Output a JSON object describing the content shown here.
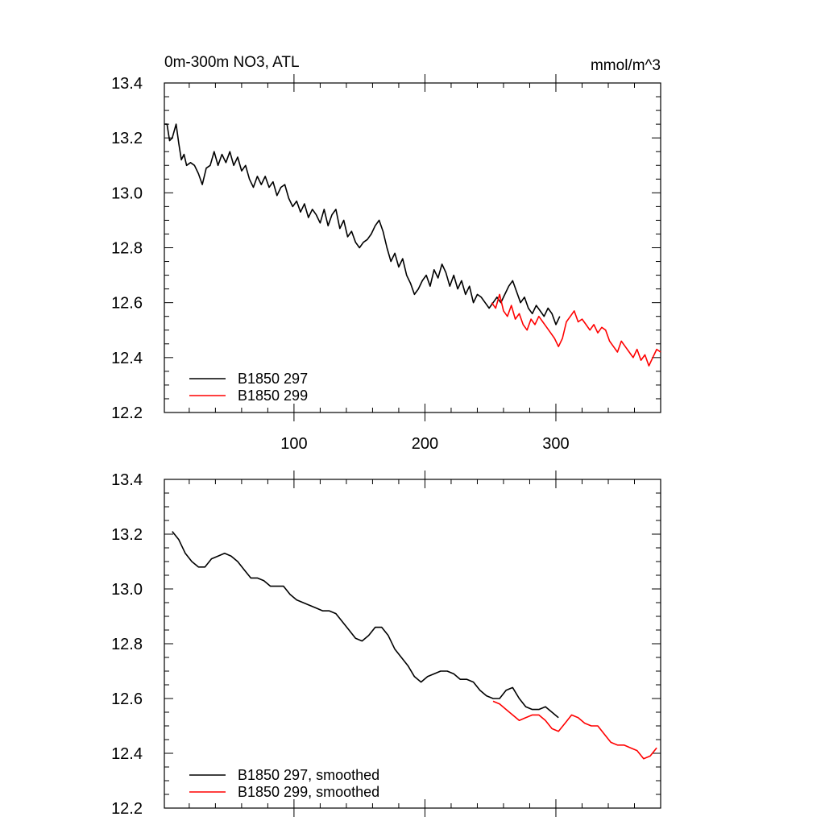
{
  "chart_data": [
    {
      "type": "line",
      "title_left": "0m-300m NO3, ATL",
      "title_right": "mmol/m^3",
      "xlabel": "",
      "ylabel": "",
      "xlim": [
        1,
        380
      ],
      "ylim": [
        12.2,
        13.4
      ],
      "xticks": [
        100,
        200,
        300
      ],
      "xtick_labels": [
        "100",
        "200",
        "300"
      ],
      "yticks": [
        12.2,
        12.4,
        12.6,
        12.8,
        13.0,
        13.2,
        13.4
      ],
      "ytick_labels": [
        "12.2",
        "12.4",
        "12.6",
        "12.8",
        "13.0",
        "13.2",
        "13.4"
      ],
      "legend_location": "bottom-left",
      "series": [
        {
          "name": "B1850 297",
          "color": "#000000",
          "points": [
            [
              1,
              13.25
            ],
            [
              3,
              13.25
            ],
            [
              5,
              13.19
            ],
            [
              7,
              13.2
            ],
            [
              10,
              13.25
            ],
            [
              12,
              13.18
            ],
            [
              14,
              13.12
            ],
            [
              16,
              13.14
            ],
            [
              18,
              13.1
            ],
            [
              21,
              13.11
            ],
            [
              24,
              13.1
            ],
            [
              27,
              13.07
            ],
            [
              30,
              13.03
            ],
            [
              33,
              13.09
            ],
            [
              36,
              13.1
            ],
            [
              39,
              13.15
            ],
            [
              42,
              13.1
            ],
            [
              45,
              13.14
            ],
            [
              48,
              13.11
            ],
            [
              51,
              13.15
            ],
            [
              54,
              13.1
            ],
            [
              57,
              13.13
            ],
            [
              60,
              13.08
            ],
            [
              63,
              13.1
            ],
            [
              66,
              13.05
            ],
            [
              69,
              13.02
            ],
            [
              72,
              13.06
            ],
            [
              75,
              13.03
            ],
            [
              78,
              13.06
            ],
            [
              81,
              13.02
            ],
            [
              84,
              13.04
            ],
            [
              87,
              12.99
            ],
            [
              90,
              13.02
            ],
            [
              93,
              13.03
            ],
            [
              96,
              12.98
            ],
            [
              99,
              12.95
            ],
            [
              102,
              12.97
            ],
            [
              105,
              12.93
            ],
            [
              108,
              12.96
            ],
            [
              111,
              12.91
            ],
            [
              114,
              12.94
            ],
            [
              117,
              12.92
            ],
            [
              120,
              12.89
            ],
            [
              123,
              12.94
            ],
            [
              126,
              12.88
            ],
            [
              129,
              12.92
            ],
            [
              132,
              12.94
            ],
            [
              135,
              12.87
            ],
            [
              138,
              12.9
            ],
            [
              141,
              12.84
            ],
            [
              144,
              12.86
            ],
            [
              147,
              12.82
            ],
            [
              150,
              12.8
            ],
            [
              153,
              12.82
            ],
            [
              156,
              12.83
            ],
            [
              159,
              12.85
            ],
            [
              162,
              12.88
            ],
            [
              165,
              12.9
            ],
            [
              168,
              12.86
            ],
            [
              171,
              12.8
            ],
            [
              174,
              12.75
            ],
            [
              177,
              12.78
            ],
            [
              180,
              12.73
            ],
            [
              183,
              12.76
            ],
            [
              186,
              12.7
            ],
            [
              189,
              12.67
            ],
            [
              192,
              12.63
            ],
            [
              195,
              12.65
            ],
            [
              198,
              12.68
            ],
            [
              201,
              12.7
            ],
            [
              204,
              12.66
            ],
            [
              207,
              12.72
            ],
            [
              210,
              12.69
            ],
            [
              213,
              12.74
            ],
            [
              216,
              12.71
            ],
            [
              219,
              12.66
            ],
            [
              222,
              12.7
            ],
            [
              225,
              12.65
            ],
            [
              228,
              12.68
            ],
            [
              231,
              12.63
            ],
            [
              234,
              12.66
            ],
            [
              237,
              12.6
            ],
            [
              240,
              12.63
            ],
            [
              243,
              12.62
            ],
            [
              246,
              12.6
            ],
            [
              249,
              12.58
            ],
            [
              252,
              12.6
            ],
            [
              255,
              12.62
            ],
            [
              258,
              12.6
            ],
            [
              261,
              12.63
            ],
            [
              264,
              12.66
            ],
            [
              267,
              12.68
            ],
            [
              270,
              12.64
            ],
            [
              273,
              12.6
            ],
            [
              276,
              12.62
            ],
            [
              279,
              12.58
            ],
            [
              282,
              12.56
            ],
            [
              285,
              12.59
            ],
            [
              288,
              12.57
            ],
            [
              291,
              12.55
            ],
            [
              294,
              12.58
            ],
            [
              297,
              12.56
            ],
            [
              300,
              12.52
            ],
            [
              303,
              12.55
            ]
          ]
        },
        {
          "name": "B1850 299",
          "color": "#ff0000",
          "points": [
            [
              251,
              12.6
            ],
            [
              254,
              12.58
            ],
            [
              257,
              12.63
            ],
            [
              260,
              12.57
            ],
            [
              263,
              12.55
            ],
            [
              266,
              12.59
            ],
            [
              269,
              12.54
            ],
            [
              272,
              12.56
            ],
            [
              275,
              12.52
            ],
            [
              278,
              12.5
            ],
            [
              281,
              12.54
            ],
            [
              284,
              12.52
            ],
            [
              287,
              12.55
            ],
            [
              290,
              12.53
            ],
            [
              293,
              12.51
            ],
            [
              296,
              12.49
            ],
            [
              299,
              12.47
            ],
            [
              302,
              12.44
            ],
            [
              305,
              12.47
            ],
            [
              308,
              12.53
            ],
            [
              311,
              12.55
            ],
            [
              314,
              12.57
            ],
            [
              317,
              12.53
            ],
            [
              320,
              12.54
            ],
            [
              323,
              12.52
            ],
            [
              326,
              12.5
            ],
            [
              329,
              12.52
            ],
            [
              332,
              12.49
            ],
            [
              335,
              12.51
            ],
            [
              338,
              12.5
            ],
            [
              341,
              12.46
            ],
            [
              344,
              12.44
            ],
            [
              347,
              12.42
            ],
            [
              350,
              12.46
            ],
            [
              353,
              12.44
            ],
            [
              356,
              12.42
            ],
            [
              359,
              12.4
            ],
            [
              362,
              12.43
            ],
            [
              365,
              12.39
            ],
            [
              368,
              12.41
            ],
            [
              371,
              12.37
            ],
            [
              374,
              12.4
            ],
            [
              377,
              12.43
            ],
            [
              380,
              12.42
            ]
          ]
        }
      ]
    },
    {
      "type": "line",
      "title_left": "",
      "title_right": "",
      "xlabel": "",
      "ylabel": "",
      "xlim": [
        1,
        380
      ],
      "ylim": [
        12.2,
        13.4
      ],
      "xticks": [
        100,
        200,
        300
      ],
      "xtick_labels": [],
      "yticks": [
        12.2,
        12.4,
        12.6,
        12.8,
        13.0,
        13.2,
        13.4
      ],
      "ytick_labels": [
        "12.2",
        "12.4",
        "12.6",
        "12.8",
        "13.0",
        "13.2",
        "13.4"
      ],
      "legend_location": "bottom-left",
      "series": [
        {
          "name": "B1850 297, smoothed",
          "color": "#000000",
          "points": [
            [
              7,
              13.21
            ],
            [
              12,
              13.18
            ],
            [
              17,
              13.13
            ],
            [
              22,
              13.1
            ],
            [
              27,
              13.08
            ],
            [
              32,
              13.08
            ],
            [
              37,
              13.11
            ],
            [
              42,
              13.12
            ],
            [
              47,
              13.13
            ],
            [
              52,
              13.12
            ],
            [
              57,
              13.1
            ],
            [
              62,
              13.07
            ],
            [
              67,
              13.04
            ],
            [
              72,
              13.04
            ],
            [
              77,
              13.03
            ],
            [
              82,
              13.01
            ],
            [
              87,
              13.01
            ],
            [
              92,
              13.01
            ],
            [
              97,
              12.98
            ],
            [
              102,
              12.96
            ],
            [
              107,
              12.95
            ],
            [
              112,
              12.94
            ],
            [
              117,
              12.93
            ],
            [
              122,
              12.92
            ],
            [
              127,
              12.92
            ],
            [
              132,
              12.91
            ],
            [
              137,
              12.88
            ],
            [
              142,
              12.85
            ],
            [
              147,
              12.82
            ],
            [
              152,
              12.81
            ],
            [
              157,
              12.83
            ],
            [
              162,
              12.86
            ],
            [
              167,
              12.86
            ],
            [
              172,
              12.83
            ],
            [
              177,
              12.78
            ],
            [
              182,
              12.75
            ],
            [
              187,
              12.72
            ],
            [
              192,
              12.68
            ],
            [
              197,
              12.66
            ],
            [
              202,
              12.68
            ],
            [
              207,
              12.69
            ],
            [
              212,
              12.7
            ],
            [
              217,
              12.7
            ],
            [
              222,
              12.69
            ],
            [
              227,
              12.67
            ],
            [
              232,
              12.67
            ],
            [
              237,
              12.66
            ],
            [
              242,
              12.63
            ],
            [
              247,
              12.61
            ],
            [
              252,
              12.6
            ],
            [
              257,
              12.6
            ],
            [
              262,
              12.63
            ],
            [
              267,
              12.64
            ],
            [
              272,
              12.6
            ],
            [
              277,
              12.57
            ],
            [
              282,
              12.56
            ],
            [
              287,
              12.56
            ],
            [
              292,
              12.57
            ],
            [
              297,
              12.55
            ],
            [
              302,
              12.53
            ]
          ]
        },
        {
          "name": "B1850 299, smoothed",
          "color": "#ff0000",
          "points": [
            [
              252,
              12.59
            ],
            [
              257,
              12.58
            ],
            [
              262,
              12.56
            ],
            [
              267,
              12.54
            ],
            [
              272,
              12.52
            ],
            [
              277,
              12.53
            ],
            [
              282,
              12.54
            ],
            [
              287,
              12.54
            ],
            [
              292,
              12.52
            ],
            [
              297,
              12.49
            ],
            [
              302,
              12.48
            ],
            [
              307,
              12.51
            ],
            [
              312,
              12.54
            ],
            [
              317,
              12.53
            ],
            [
              322,
              12.51
            ],
            [
              327,
              12.5
            ],
            [
              332,
              12.5
            ],
            [
              337,
              12.47
            ],
            [
              342,
              12.44
            ],
            [
              347,
              12.43
            ],
            [
              352,
              12.43
            ],
            [
              357,
              12.42
            ],
            [
              362,
              12.41
            ],
            [
              367,
              12.38
            ],
            [
              372,
              12.39
            ],
            [
              377,
              12.42
            ]
          ]
        }
      ]
    }
  ]
}
